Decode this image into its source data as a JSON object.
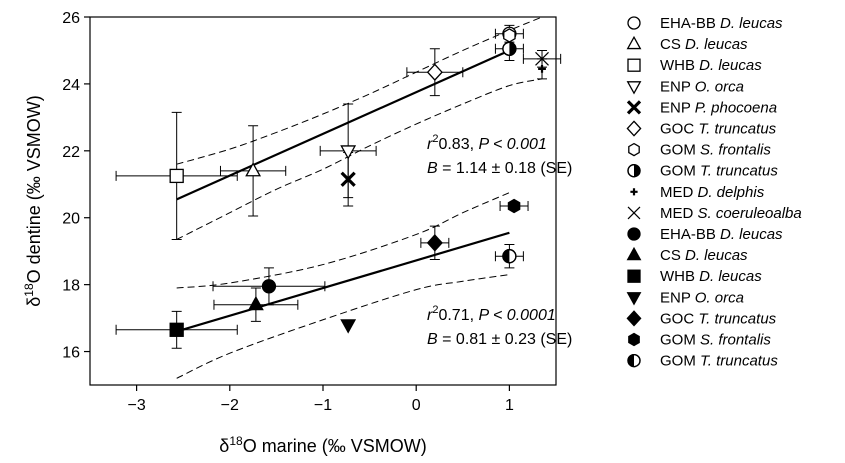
{
  "chart_data": {
    "type": "scatter",
    "xlabel": "δ18O marine (‰ VSMOW)",
    "ylabel": "δ18O dentine (‰ VSMOW)",
    "xlim": [
      -3.5,
      1.5
    ],
    "ylim": [
      15,
      26
    ],
    "xticks": [
      -3,
      -2,
      -1,
      0,
      1
    ],
    "yticks": [
      16,
      18,
      20,
      22,
      24,
      26
    ],
    "grid": false,
    "legend_placement": "right",
    "series": [
      {
        "name": "EHA-BB D. leucas",
        "species": "EHA-BB ",
        "italic": "D. leucas",
        "group": "upper",
        "marker": "circle-open",
        "x": 1.0,
        "y": 25.5,
        "xerr": 0.15,
        "yerr": 0.25
      },
      {
        "name": "CS D. leucas",
        "species": "CS ",
        "italic": "D. leucas",
        "group": "upper",
        "marker": "triangle-open",
        "x": -1.75,
        "y": 21.4,
        "xerr": 0.35,
        "yerr": 1.35
      },
      {
        "name": "WHB D. leucas",
        "species": "WHB ",
        "italic": "D. leucas",
        "group": "upper",
        "marker": "square-open",
        "x": -2.57,
        "y": 21.25,
        "xerr": 0.65,
        "yerr": 1.9
      },
      {
        "name": "ENP O. orca",
        "species": "ENP ",
        "italic": "O. orca",
        "group": "upper",
        "marker": "triangle-down-open",
        "x": -0.73,
        "y": 22.0,
        "xerr": 0.3,
        "yerr": 1.4
      },
      {
        "name": "ENP P. phocoena",
        "species": "ENP ",
        "italic": "P. phocoena",
        "group": "upper",
        "marker": "x-bold",
        "x": -0.73,
        "y": 21.15,
        "xerr": 0.0,
        "yerr": 0.8
      },
      {
        "name": "GOC T. truncatus",
        "species": "GOC ",
        "italic": "T. truncatus",
        "group": "upper",
        "marker": "diamond-open",
        "x": 0.2,
        "y": 24.35,
        "xerr": 0.3,
        "yerr": 0.7
      },
      {
        "name": "GOM S. frontalis",
        "species": "GOM ",
        "italic": "S. frontalis",
        "group": "upper",
        "marker": "hexagon-open",
        "x": 1.0,
        "y": 25.45,
        "xerr": 0.0,
        "yerr": 0.0
      },
      {
        "name": "GOM T. truncatus",
        "species": "GOM ",
        "italic": "T. truncatus",
        "group": "upper",
        "marker": "circle-half",
        "x": 1.0,
        "y": 25.05,
        "xerr": 0.15,
        "yerr": 0.35
      },
      {
        "name": "MED D. delphis",
        "species": "MED ",
        "italic": "D. delphis",
        "group": "upper",
        "marker": "plus-small",
        "x": 1.35,
        "y": 24.45,
        "xerr": 0.0,
        "yerr": 0.3
      },
      {
        "name": "MED S. coeruleoalba",
        "species": "MED ",
        "italic": "S. coeruleoalba",
        "group": "upper",
        "marker": "x-thin",
        "x": 1.35,
        "y": 24.75,
        "xerr": 0.2,
        "yerr": 0.25
      },
      {
        "name": "EHA-BB D. leucas",
        "species": "EHA-BB ",
        "italic": "D. leucas",
        "group": "lower",
        "marker": "circle-filled",
        "x": -1.58,
        "y": 17.95,
        "xerr": 0.6,
        "yerr": 0.55
      },
      {
        "name": "CS D. leucas",
        "species": "CS ",
        "italic": "D. leucas",
        "group": "lower",
        "marker": "triangle-filled",
        "x": -1.72,
        "y": 17.4,
        "xerr": 0.45,
        "yerr": 0.5
      },
      {
        "name": "WHB D. leucas",
        "species": "WHB ",
        "italic": "D. leucas",
        "group": "lower",
        "marker": "square-filled",
        "x": -2.57,
        "y": 16.65,
        "xerr": 0.65,
        "yerr": 0.55
      },
      {
        "name": "ENP O. orca",
        "species": "ENP ",
        "italic": "O. orca",
        "group": "lower",
        "marker": "triangle-down-filled",
        "x": -0.73,
        "y": 16.8,
        "xerr": 0.0,
        "yerr": 0.0
      },
      {
        "name": "GOC T. truncatus",
        "species": "GOC ",
        "italic": "T. truncatus",
        "group": "lower",
        "marker": "diamond-filled",
        "x": 0.2,
        "y": 19.25,
        "xerr": 0.15,
        "yerr": 0.5
      },
      {
        "name": "GOM S. frontalis",
        "species": "GOM ",
        "italic": "S. frontalis",
        "group": "lower",
        "marker": "hexagon-filled",
        "x": 1.05,
        "y": 20.35,
        "xerr": 0.15,
        "yerr": 0.0
      },
      {
        "name": "GOM T. truncatus",
        "species": "GOM ",
        "italic": "T. truncatus",
        "group": "lower",
        "marker": "circle-half-filled",
        "x": 1.0,
        "y": 18.85,
        "xerr": 0.15,
        "yerr": 0.35
      }
    ],
    "regressions": [
      {
        "group": "upper",
        "fit": [
          [
            -2.57,
            20.55
          ],
          [
            1.0,
            25.0
          ]
        ],
        "ci_upper": [
          [
            -2.57,
            21.6
          ],
          [
            -2.0,
            22.05
          ],
          [
            -1.5,
            22.55
          ],
          [
            -1.0,
            23.1
          ],
          [
            -0.5,
            23.7
          ],
          [
            0.0,
            24.35
          ],
          [
            0.5,
            25.0
          ],
          [
            1.0,
            25.6
          ],
          [
            1.35,
            26.0
          ]
        ],
        "ci_lower": [
          [
            -2.57,
            19.35
          ],
          [
            -2.0,
            20.15
          ],
          [
            -1.5,
            20.85
          ],
          [
            -1.0,
            21.45
          ],
          [
            -0.5,
            22.15
          ],
          [
            0.0,
            22.8
          ],
          [
            0.5,
            23.4
          ],
          [
            1.0,
            23.95
          ],
          [
            1.35,
            24.15
          ]
        ],
        "annotation_r2": "0.83",
        "annotation_p": "P < 0.001",
        "annotation_b": "= 1.14 ± 0.18 (SE)"
      },
      {
        "group": "lower",
        "fit": [
          [
            -2.57,
            16.6
          ],
          [
            1.0,
            19.55
          ]
        ],
        "ci_upper": [
          [
            -2.57,
            17.9
          ],
          [
            -2.0,
            18.05
          ],
          [
            -1.0,
            18.6
          ],
          [
            0.0,
            19.5
          ],
          [
            0.5,
            20.15
          ],
          [
            1.0,
            20.75
          ]
        ],
        "ci_lower": [
          [
            -2.57,
            15.2
          ],
          [
            -2.0,
            15.95
          ],
          [
            -1.0,
            16.95
          ],
          [
            0.0,
            17.85
          ],
          [
            0.5,
            18.1
          ],
          [
            1.0,
            18.3
          ]
        ],
        "annotation_r2": "0.71",
        "annotation_p": "P < 0.0001",
        "annotation_b": "= 0.81 ± 0.23 (SE)"
      }
    ]
  }
}
